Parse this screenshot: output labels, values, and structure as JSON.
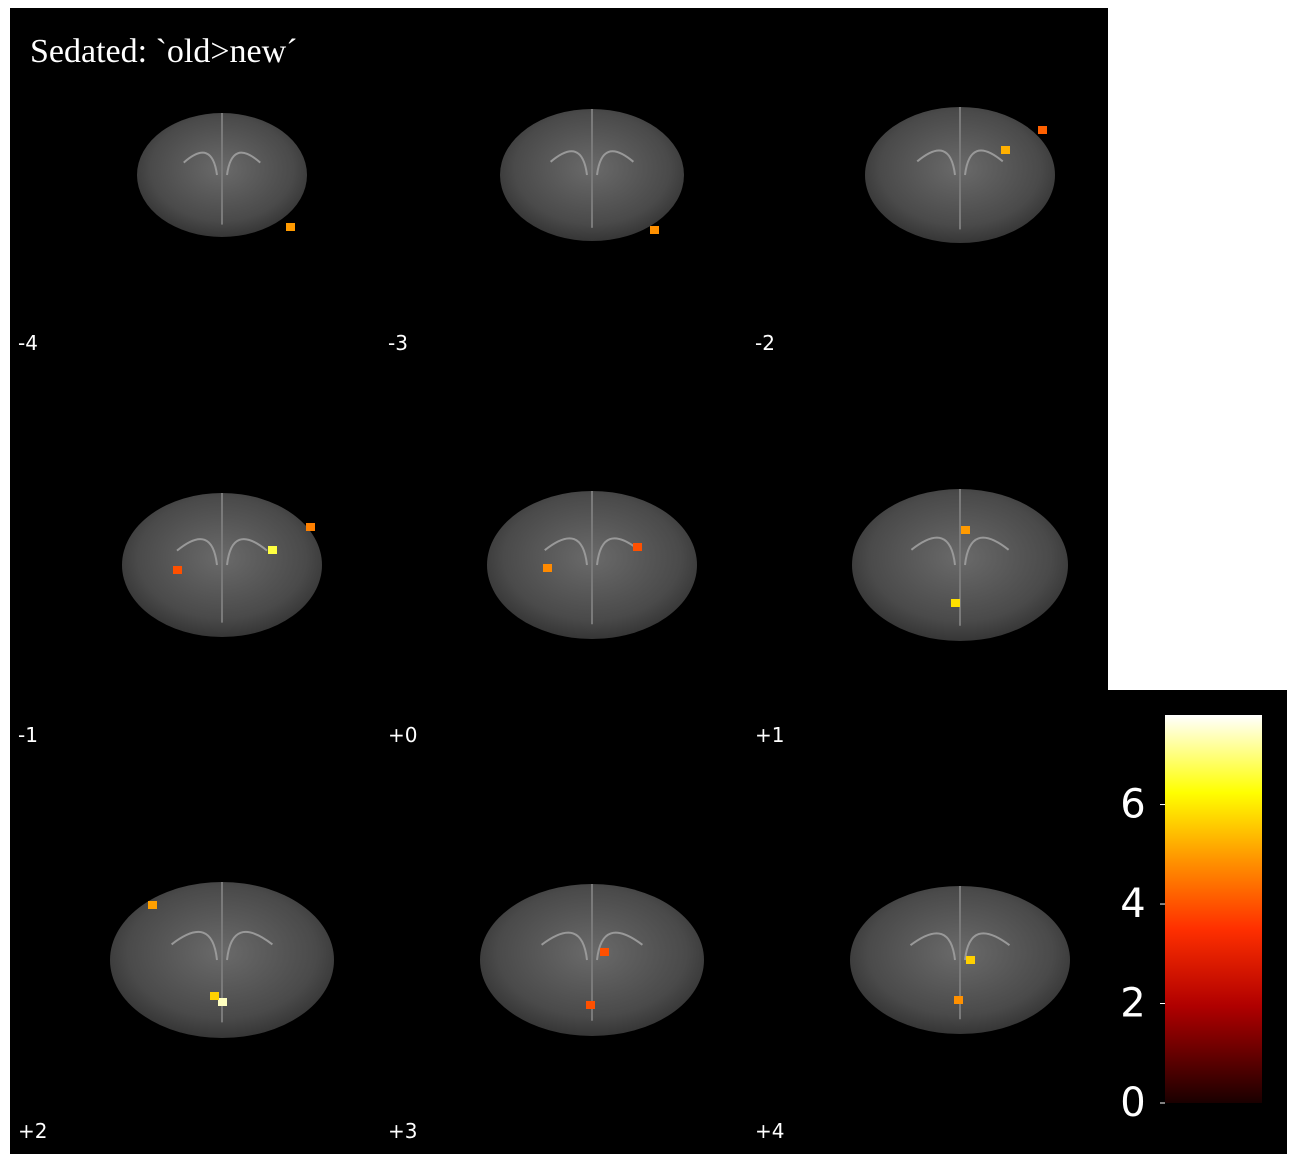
{
  "title": "Sedated: `old>new´",
  "slices": [
    {
      "label": "-4"
    },
    {
      "label": "-3"
    },
    {
      "label": "-2"
    },
    {
      "label": "-1"
    },
    {
      "label": "+0"
    },
    {
      "label": "+1"
    },
    {
      "label": "+2"
    },
    {
      "label": "+3"
    },
    {
      "label": "+4"
    }
  ],
  "colorbar": {
    "lim": [
      0,
      7.8
    ],
    "ticks": [
      0,
      2,
      4,
      6
    ]
  }
}
